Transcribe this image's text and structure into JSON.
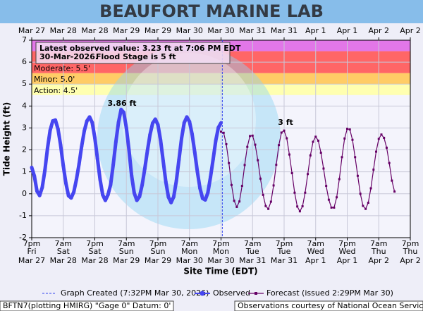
{
  "chart_data": {
    "type": "line",
    "title": "BEAUFORT MARINE LAB",
    "xlabel": "Site Time (EDT)",
    "ylabel": "Tide Height (ft)",
    "xlim": [
      0,
      144
    ],
    "ylim": [
      -2,
      7
    ],
    "yticks": [
      -2,
      -1,
      0,
      1,
      2,
      3,
      4,
      5,
      6,
      7
    ],
    "xticks": [
      {
        "value": 0,
        "label": "7pm"
      },
      {
        "value": 12,
        "label": "7am"
      },
      {
        "value": 24,
        "label": "7pm"
      },
      {
        "value": 36,
        "label": "7am"
      },
      {
        "value": 48,
        "label": "7pm"
      },
      {
        "value": 60,
        "label": "7am"
      },
      {
        "value": 72,
        "label": "7pm"
      },
      {
        "value": 84,
        "label": "7am"
      },
      {
        "value": 96,
        "label": "7pm"
      },
      {
        "value": 108,
        "label": "7am"
      },
      {
        "value": 120,
        "label": "7pm"
      },
      {
        "value": 132,
        "label": "7am"
      },
      {
        "value": 144,
        "label": "7pm"
      }
    ],
    "xtick_weekdays": [
      "Fri",
      "Sat",
      "Sat",
      "Sun",
      "Sun",
      "Mon",
      "Mon",
      "Tue",
      "Tue",
      "Wed",
      "Wed",
      "Thu",
      "Thu"
    ],
    "xtick_dates": [
      "Mar 27",
      "Mar 28",
      "Mar 28",
      "Mar 29",
      "Mar 29",
      "Mar 30",
      "Mar 30",
      "Mar 31",
      "Mar 31",
      "Apr 1",
      "Apr 1",
      "Apr 2",
      "Apr 2"
    ],
    "grid": true,
    "flood_stages": [
      {
        "label": "Action: 4.5'",
        "value": 4.5,
        "color": "#ffffb0"
      },
      {
        "label": "Minor: 5.0'",
        "value": 5,
        "color": "#ffcc66"
      },
      {
        "label": "Moderate: 5.5'",
        "value": 5.5,
        "color": "#ff6666"
      }
    ],
    "major_stage": {
      "value": 6.5,
      "color": "#e277e8"
    },
    "annotation_lines": [
      "Latest observed value: 3.23 ft at 7:06 PM EDT",
      "30-Mar-2026.",
      "Flood Stage is 5 ft"
    ],
    "peak_labels": [
      "3.86 ft",
      "3 ft"
    ],
    "graph_created": {
      "x": 72.5,
      "label": "Graph Created (7:32PM Mar 30, 2026)"
    },
    "series": [
      {
        "name": "Observed",
        "color": "#4646f0",
        "x": [
          0,
          1,
          2,
          3,
          4,
          5,
          6,
          7,
          8,
          9,
          10,
          11,
          12,
          13,
          14,
          15,
          16,
          17,
          18,
          19,
          20,
          21,
          22,
          23,
          24,
          25,
          26,
          27,
          28,
          29,
          30,
          31,
          32,
          33,
          34,
          35,
          36,
          37,
          38,
          39,
          40,
          41,
          42,
          43,
          44,
          45,
          46,
          47,
          48,
          49,
          50,
          51,
          52,
          53,
          54,
          55,
          56,
          57,
          58,
          59,
          60,
          61,
          62,
          63,
          64,
          65,
          66,
          67,
          68,
          69,
          70,
          71,
          72
        ],
        "values": [
          1.2,
          0.81,
          0.12,
          -0.08,
          0.29,
          1.06,
          2.07,
          2.89,
          3.32,
          3.36,
          2.95,
          2.21,
          1.28,
          0.48,
          -0.09,
          -0.19,
          0.08,
          0.65,
          1.35,
          2.17,
          2.87,
          3.32,
          3.5,
          3.25,
          2.55,
          1.6,
          0.65,
          -0.05,
          -0.3,
          -0.05,
          0.41,
          1.32,
          2.36,
          3.25,
          3.84,
          3.71,
          3.0,
          1.99,
          0.82,
          0.03,
          -0.3,
          -0.13,
          0.4,
          1.14,
          1.96,
          2.7,
          3.22,
          3.4,
          3.15,
          2.45,
          1.5,
          0.55,
          -0.15,
          -0.4,
          -0.14,
          0.58,
          1.55,
          2.53,
          3.24,
          3.5,
          3.29,
          2.72,
          1.9,
          1.01,
          0.25,
          -0.21,
          -0.28,
          0.05,
          0.76,
          1.57,
          2.42,
          3.02,
          3.23
        ]
      },
      {
        "name": "Forecast (issued 2:29PM Mar 30)",
        "color": "#660066",
        "x": [
          72,
          73,
          74,
          75,
          76,
          77,
          78,
          79,
          80,
          81,
          82,
          83,
          84,
          85,
          86,
          87,
          88,
          89,
          90,
          91,
          92,
          93,
          94,
          95,
          96,
          97,
          98,
          99,
          100,
          101,
          102,
          103,
          104,
          105,
          106,
          107,
          108,
          109,
          110,
          111,
          112,
          113,
          114,
          115,
          116,
          117,
          118,
          119,
          120,
          121,
          122,
          123,
          124,
          125,
          126,
          127,
          128,
          129,
          130,
          131,
          132,
          133,
          134,
          135,
          136,
          137,
          138
        ],
        "values": [
          2.83,
          2.78,
          2.26,
          1.4,
          0.4,
          -0.32,
          -0.6,
          -0.35,
          0.36,
          1.31,
          2.14,
          2.63,
          2.65,
          2.24,
          1.53,
          0.69,
          -0.05,
          -0.56,
          -0.69,
          -0.36,
          0.38,
          1.32,
          2.22,
          2.79,
          2.88,
          2.53,
          1.79,
          0.94,
          0.05,
          -0.58,
          -0.8,
          -0.57,
          0.05,
          0.9,
          1.75,
          2.37,
          2.6,
          2.42,
          1.87,
          1.15,
          0.36,
          -0.27,
          -0.63,
          -0.63,
          -0.16,
          0.67,
          1.67,
          2.52,
          2.96,
          2.93,
          2.46,
          1.67,
          0.82,
          0.0,
          -0.55,
          -0.69,
          -0.41,
          0.25,
          1.1,
          1.92,
          2.5,
          2.7,
          2.55,
          2.1,
          1.4,
          0.6,
          0.1
        ]
      }
    ],
    "footer_left": "BFTN7(plotting HMIRG) \"Gage 0\" Datum: 0'",
    "footer_right": "Observations courtesy of National Ocean Service"
  }
}
